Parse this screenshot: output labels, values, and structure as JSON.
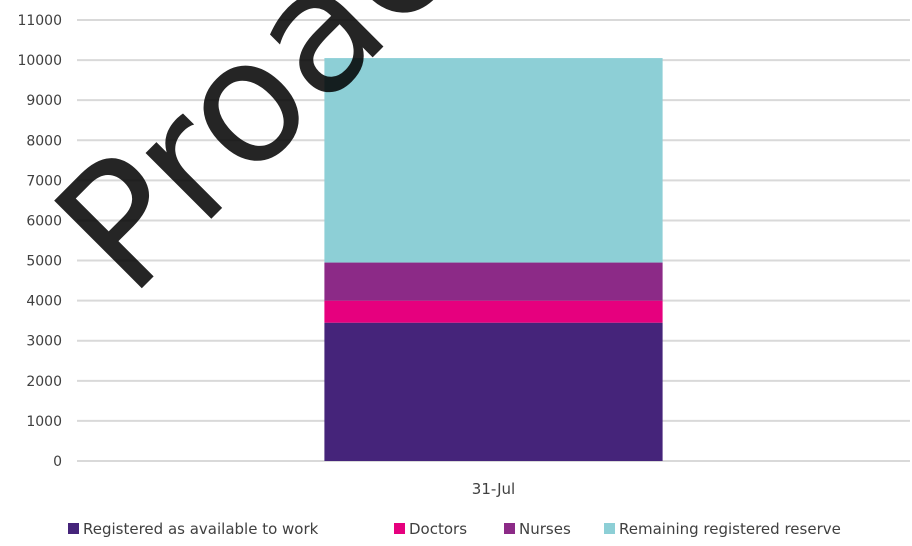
{
  "chart_data": {
    "type": "bar",
    "stacked": true,
    "title": "",
    "xlabel": "",
    "ylabel": "",
    "categories": [
      "31-Jul"
    ],
    "ylim": [
      0,
      11000
    ],
    "yticks": [
      0,
      1000,
      2000,
      3000,
      4000,
      5000,
      6000,
      7000,
      8000,
      9000,
      10000,
      11000
    ],
    "grid": true,
    "legend_position": "bottom",
    "series": [
      {
        "name": "Registered as available to work",
        "values": [
          3450
        ],
        "color": "#45247a"
      },
      {
        "name": "Doctors",
        "values": [
          550
        ],
        "color": "#e6007e"
      },
      {
        "name": "Nurses",
        "values": [
          950
        ],
        "color": "#8c2a87"
      },
      {
        "name": "Remaining registered reserve",
        "values": [
          5100
        ],
        "color": "#8dcfd6"
      }
    ]
  },
  "watermark": {
    "text": "Proactive",
    "color": "#000000"
  }
}
